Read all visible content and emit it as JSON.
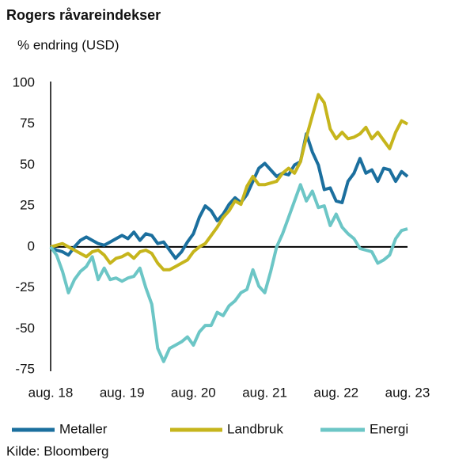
{
  "chart_data": {
    "type": "line",
    "title": "Rogers råvareindekser",
    "y_label": "% endring (USD)",
    "source": "Kilde: Bloomberg",
    "categories": [
      "aug. 18",
      null,
      null,
      null,
      null,
      null,
      null,
      null,
      null,
      null,
      null,
      null,
      "aug. 19",
      null,
      null,
      null,
      null,
      null,
      null,
      null,
      null,
      null,
      null,
      null,
      "aug. 20",
      null,
      null,
      null,
      null,
      null,
      null,
      null,
      null,
      null,
      null,
      null,
      "aug. 21",
      null,
      null,
      null,
      null,
      null,
      null,
      null,
      null,
      null,
      null,
      null,
      "aug. 22",
      null,
      null,
      null,
      null,
      null,
      null,
      null,
      null,
      null,
      null,
      null,
      "aug. 23"
    ],
    "series": [
      {
        "name": "Metaller",
        "color": "#1b6f9e",
        "values": [
          0,
          -2,
          -3,
          -5,
          0,
          4,
          6,
          4,
          2,
          1,
          3,
          5,
          7,
          5,
          9,
          4,
          8,
          7,
          2,
          3,
          -2,
          -7,
          -3,
          3,
          8,
          18,
          25,
          22,
          16,
          20,
          26,
          30,
          27,
          32,
          40,
          48,
          51,
          47,
          43,
          45,
          44,
          50,
          52,
          69,
          58,
          50,
          35,
          36,
          28,
          27,
          40,
          45,
          54,
          45,
          47,
          40,
          48,
          47,
          40,
          46,
          43
        ]
      },
      {
        "name": "Landbruk",
        "color": "#c6b51c",
        "values": [
          0,
          1,
          2,
          0,
          -2,
          -4,
          -6,
          -3,
          -2,
          -5,
          -10,
          -7,
          -6,
          -4,
          -7,
          -3,
          -2,
          -4,
          -10,
          -14,
          -14,
          -12,
          -10,
          -8,
          -3,
          0,
          2,
          7,
          12,
          18,
          22,
          28,
          26,
          37,
          43,
          38,
          38,
          39,
          40,
          45,
          48,
          45,
          52,
          67,
          80,
          93,
          88,
          72,
          66,
          70,
          66,
          67,
          69,
          73,
          66,
          70,
          65,
          60,
          70,
          77,
          75
        ]
      },
      {
        "name": "Energi",
        "color": "#6cc6c6",
        "values": [
          0,
          -5,
          -15,
          -28,
          -20,
          -15,
          -12,
          -6,
          -20,
          -13,
          -20,
          -19,
          -21,
          -19,
          -18,
          -13,
          -25,
          -35,
          -62,
          -70,
          -62,
          -60,
          -58,
          -55,
          -60,
          -52,
          -48,
          -48,
          -40,
          -42,
          -36,
          -33,
          -28,
          -26,
          -14,
          -24,
          -28,
          -15,
          0,
          8,
          18,
          28,
          38,
          28,
          34,
          24,
          25,
          13,
          20,
          12,
          8,
          5,
          -1,
          -2,
          -3,
          -10,
          -8,
          -5,
          5,
          10,
          11
        ]
      }
    ],
    "ylim": [
      -75,
      100
    ],
    "yticks": [
      -75,
      -50,
      -25,
      0,
      25,
      50,
      75,
      100
    ]
  }
}
